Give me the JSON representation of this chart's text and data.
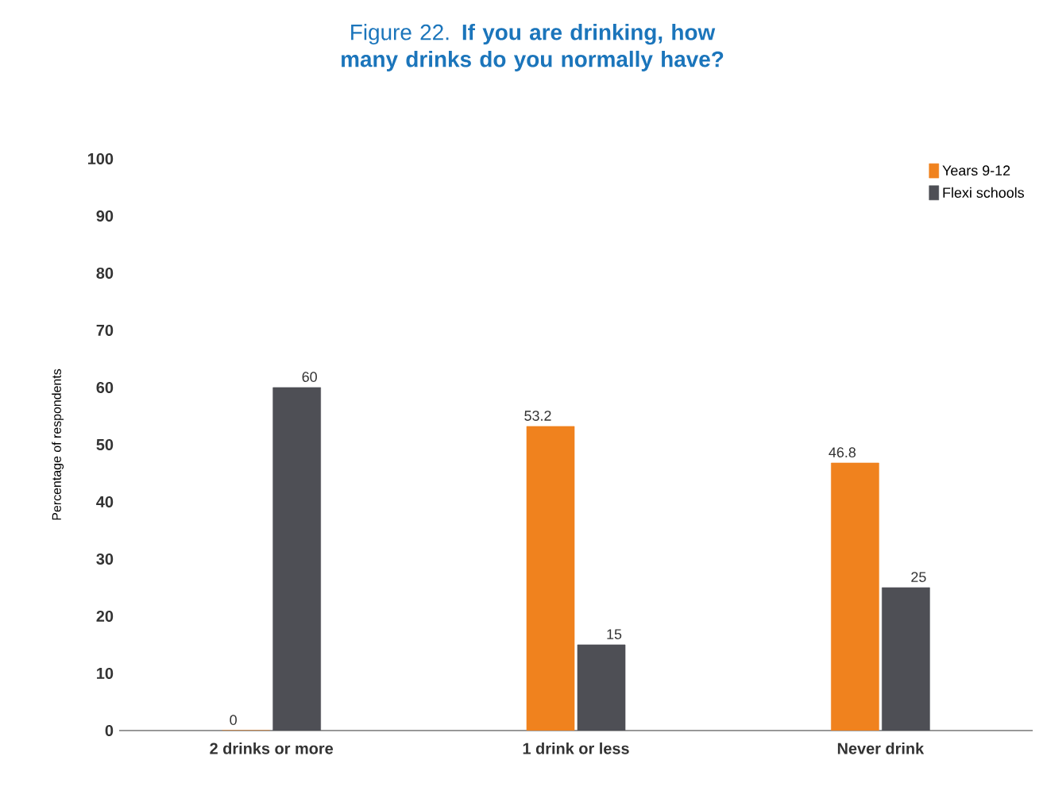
{
  "chart_data": {
    "type": "bar",
    "title": "Figure 22. **If you are drinking, how many drinks do you normally have?**",
    "ylabel": "Percentage of respondents",
    "categories": [
      "2 drinks or more",
      "1 drink or less",
      "Never drink"
    ],
    "series": [
      {
        "name": "Years 9-12",
        "color": "#f0821e",
        "values": [
          0,
          53.2,
          46.8
        ]
      },
      {
        "name": "Flexi schools",
        "color": "#4e4f55",
        "values": [
          60,
          15,
          25
        ]
      }
    ],
    "ylim": [
      0,
      100
    ],
    "yticks": [
      0,
      10,
      20,
      30,
      40,
      50,
      60,
      70,
      80,
      90,
      100
    ],
    "data_labels": true,
    "legend": "top right"
  }
}
